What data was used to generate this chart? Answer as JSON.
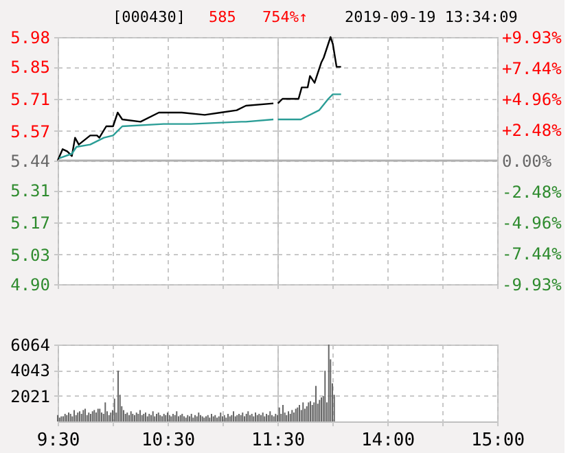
{
  "chart_data": [
    {
      "type": "line",
      "title": "[000430]",
      "annotations": [
        "585",
        "754%↑",
        "2019-09-19 13:34:09"
      ],
      "xlim": [
        9.5,
        11.5
      ],
      "xticks": [
        {
          "value": 9.5,
          "label": null
        },
        {
          "value": 10,
          "label": null
        },
        {
          "value": 10.5,
          "label": null
        },
        {
          "value": 11,
          "label": null
        },
        {
          "value": 11.5,
          "label": null
        }
      ],
      "ylim": [
        4.9,
        5.98
      ],
      "yticks": [
        {
          "value": 4.9,
          "label": "4.90"
        },
        5.03,
        5.17,
        5.31,
        5.44,
        5.57,
        5.71,
        5.85,
        5.98
      ],
      "grid": true,
      "tick_labels": "y",
      "ref_lines": [
        {
          "axis": "y",
          "value": 5.44
        }
      ],
      "series": [
        {
          "color": "#000000",
          "x": [
            9.5,
            9.545,
            9.588,
            9.629,
            9.658,
            9.692,
            9.796,
            9.858,
            9.879,
            9.942,
            10.004,
            10.046,
            10.088,
            10.254,
            10.421,
            10.629,
            10.838,
            10.983,
            11.129,
            11.213,
            11.463
          ],
          "values": [
            5.44,
            5.49,
            5.48,
            5.46,
            5.54,
            5.51,
            5.55,
            5.55,
            5.54,
            5.59,
            5.59,
            5.65,
            5.62,
            5.61,
            5.65,
            5.65,
            5.64,
            5.65,
            5.66,
            5.68,
            5.69
          ]
        },
        {
          "color": "#2a9d96",
          "x": [
            9.513,
            9.629,
            9.671,
            9.796,
            9.921,
            10.004,
            10.088,
            10.463,
            10.713,
            11.171,
            11.213,
            11.463
          ],
          "values": [
            5.45,
            5.47,
            5.5,
            5.51,
            5.54,
            5.55,
            5.59,
            5.6,
            5.6,
            5.61,
            5.61,
            5.62
          ]
        }
      ]
    },
    {
      "type": "line",
      "xlim": [
        13,
        15
      ],
      "xticks": [
        {
          "value": 13,
          "label": null
        },
        {
          "value": 13.5,
          "label": null
        },
        {
          "value": 14,
          "label": null
        },
        {
          "value": 14.5,
          "label": null
        },
        {
          "value": 15,
          "label": null
        }
      ],
      "ylim": [
        4.9,
        5.98
      ],
      "yticks": [
        {
          "value": 4.9,
          "label": null
        },
        {
          "value": 5.03,
          "label": null
        },
        {
          "value": 5.17,
          "label": null
        },
        {
          "value": 5.31,
          "label": null
        },
        {
          "value": 5.44,
          "label": null
        },
        {
          "value": 5.57,
          "label": null
        },
        {
          "value": 5.71,
          "label": null
        },
        {
          "value": 5.85,
          "label": null
        },
        {
          "value": 5.98,
          "label": null
        }
      ],
      "y2lim": [
        -9.93,
        9.93
      ],
      "y2ticks": [
        {
          "value": -9.93,
          "label": "-9.93%"
        },
        {
          "value": -7.44,
          "label": "-7.44%"
        },
        {
          "value": -4.96,
          "label": "-4.96%"
        },
        {
          "value": -2.48,
          "label": "-2.48%"
        },
        {
          "value": 0,
          "label": "0.00%"
        },
        {
          "value": 2.48,
          "label": "+2.48%"
        },
        {
          "value": 4.96,
          "label": "+4.96%"
        },
        {
          "value": 7.44,
          "label": "+7.44%"
        },
        {
          "value": 9.93,
          "label": "+9.93%"
        }
      ],
      "grid": true,
      "tick_labels": false,
      "ref_lines": [
        {
          "axis": "y",
          "value": 5.44
        }
      ],
      "series": [
        {
          "color": "#000000",
          "x": [
            13.004,
            13.046,
            13.192,
            13.221,
            13.275,
            13.296,
            13.338,
            13.4,
            13.421,
            13.483,
            13.504,
            13.538,
            13.579
          ],
          "values": [
            5.69,
            5.71,
            5.71,
            5.76,
            5.76,
            5.81,
            5.78,
            5.87,
            5.89,
            5.98,
            5.95,
            5.85,
            5.85
          ]
        },
        {
          "color": "#2a9d96",
          "x": [
            13.004,
            13.213,
            13.379,
            13.463,
            13.504,
            13.579
          ],
          "values": [
            5.62,
            5.62,
            5.66,
            5.71,
            5.73,
            5.73
          ]
        }
      ]
    },
    {
      "type": "bar",
      "xlim": [
        9.5,
        11.5
      ],
      "xticks": [
        {
          "value": 9.5,
          "label": "9:30"
        },
        {
          "value": 10,
          "label": null
        },
        {
          "value": 10.5,
          "label": "10:30"
        },
        {
          "value": 11,
          "label": null
        },
        {
          "value": 11.5,
          "label": "11:30"
        }
      ],
      "ylim": [
        0,
        6064
      ],
      "yticks": [
        2021,
        4043,
        6064
      ],
      "grid": true,
      "series": [
        {
          "color": "#666666",
          "x": [
            9.5,
            9.517,
            9.533,
            9.55,
            9.567,
            9.583,
            9.6,
            9.617,
            9.633,
            9.65,
            9.667,
            9.683,
            9.7,
            9.717,
            9.733,
            9.75,
            9.767,
            9.783,
            9.8,
            9.817,
            9.833,
            9.85,
            9.867,
            9.883,
            9.9,
            9.917,
            9.933,
            9.95,
            9.967,
            9.983,
            10.0,
            10.017,
            10.033,
            10.05,
            10.067,
            10.083,
            10.1,
            10.117,
            10.133,
            10.15,
            10.167,
            10.183,
            10.2,
            10.217,
            10.233,
            10.25,
            10.267,
            10.283,
            10.3,
            10.317,
            10.333,
            10.35,
            10.367,
            10.383,
            10.4,
            10.417,
            10.433,
            10.45,
            10.467,
            10.483,
            10.5,
            10.517,
            10.533,
            10.55,
            10.567,
            10.583,
            10.6,
            10.617,
            10.633,
            10.65,
            10.667,
            10.683,
            10.7,
            10.717,
            10.733,
            10.75,
            10.767,
            10.783,
            10.8,
            10.817,
            10.833,
            10.85,
            10.867,
            10.883,
            10.9,
            10.917,
            10.933,
            10.95,
            10.967,
            10.983,
            11.0,
            11.017,
            11.033,
            11.05,
            11.067,
            11.083,
            11.1,
            11.117,
            11.133,
            11.15,
            11.167,
            11.183,
            11.2,
            11.217,
            11.233,
            11.25,
            11.267,
            11.283,
            11.3,
            11.317,
            11.333,
            11.35,
            11.367,
            11.383,
            11.4,
            11.417,
            11.433,
            11.45,
            11.467,
            11.483
          ],
          "values": [
            500,
            300,
            400,
            400,
            600,
            500,
            700,
            600,
            400,
            900,
            500,
            700,
            800,
            600,
            900,
            1000,
            500,
            700,
            600,
            800,
            900,
            700,
            1000,
            1000,
            700,
            600,
            1500,
            800,
            500,
            700,
            900,
            1800,
            700,
            4000,
            2100,
            1200,
            900,
            600,
            700,
            500,
            800,
            600,
            500,
            700,
            600,
            900,
            500,
            600,
            700,
            400,
            600,
            500,
            800,
            400,
            600,
            700,
            500,
            400,
            600,
            500,
            700,
            500,
            400,
            600,
            500,
            800,
            400,
            500,
            600,
            400,
            300,
            500,
            400,
            600,
            300,
            500,
            400,
            700,
            500,
            400,
            300,
            400,
            500,
            300,
            600,
            400,
            500,
            300,
            400,
            700,
            400,
            500,
            300,
            600,
            400,
            500,
            800,
            400,
            500,
            600,
            500,
            700,
            400,
            600,
            800,
            500,
            600,
            400,
            700,
            500,
            600,
            500,
            700,
            400,
            600,
            500,
            800,
            500,
            400,
            600
          ]
        }
      ]
    },
    {
      "type": "bar",
      "xlim": [
        13,
        15
      ],
      "xticks": [
        {
          "value": 13,
          "label": null
        },
        {
          "value": 13.5,
          "label": null
        },
        {
          "value": 14,
          "label": "14:00"
        },
        {
          "value": 14.5,
          "label": null
        },
        {
          "value": 15,
          "label": "15:00"
        }
      ],
      "ylim": [
        0,
        6064
      ],
      "yticks": [
        {
          "value": 2021,
          "label": null
        },
        {
          "value": 4043,
          "label": null
        },
        {
          "value": 6064,
          "label": null
        }
      ],
      "grid": true,
      "tick_labels": "x",
      "series": [
        {
          "color": "#666666",
          "x": [
            13.0,
            13.017,
            13.033,
            13.05,
            13.067,
            13.083,
            13.1,
            13.117,
            13.133,
            13.15,
            13.167,
            13.183,
            13.2,
            13.217,
            13.233,
            13.25,
            13.267,
            13.283,
            13.3,
            13.317,
            13.333,
            13.35,
            13.367,
            13.383,
            13.4,
            13.417,
            13.433,
            13.45,
            13.467,
            13.483,
            13.5,
            13.517
          ],
          "values": [
            500,
            1100,
            600,
            1300,
            700,
            500,
            800,
            600,
            900,
            700,
            1000,
            1100,
            1300,
            900,
            1500,
            1000,
            1200,
            1500,
            1600,
            1300,
            1500,
            2800,
            1400,
            1700,
            1900,
            2000,
            4000,
            1500,
            6064,
            4900,
            3000,
            2100
          ]
        }
      ]
    }
  ]
}
